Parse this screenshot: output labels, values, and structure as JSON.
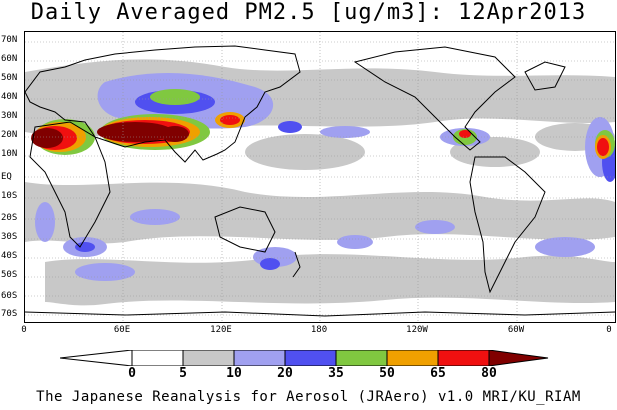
{
  "title": "Daily Averaged PM2.5 [ug/m3]: 12Apr2013",
  "footer": "The Japanese Reanalysis for Aerosol (JRAero) v1.0 MRI/KU_RIAM",
  "lat_labels": [
    "70N",
    "60N",
    "50N",
    "40N",
    "30N",
    "20N",
    "10N",
    "EQ",
    "10S",
    "20S",
    "30S",
    "40S",
    "50S",
    "60S",
    "70S"
  ],
  "lon_labels": [
    "0",
    "60E",
    "120E",
    "180",
    "120W",
    "60W",
    "0"
  ],
  "colorbar": {
    "ticks": [
      "0",
      "5",
      "10",
      "20",
      "35",
      "50",
      "65",
      "80"
    ],
    "colors": [
      "#ffffff",
      "#c8c8c8",
      "#a0a0f0",
      "#5050f0",
      "#80c840",
      "#f0a000",
      "#f01010",
      "#800000"
    ]
  }
}
